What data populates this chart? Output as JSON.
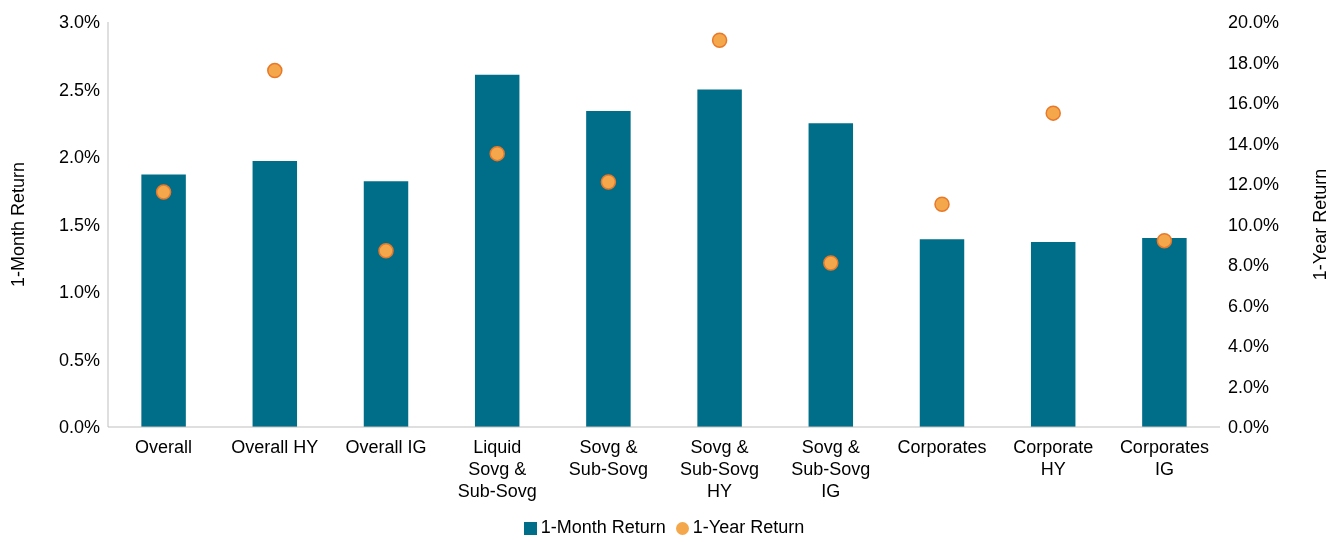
{
  "chart_data": {
    "type": "bar",
    "categories": [
      "Overall",
      "Overall HY",
      "Overall IG",
      "Liquid Sovg & Sub-Sovg",
      "Sovg & Sub-Sovg",
      "Sovg & Sub-Sovg HY",
      "Sovg & Sub-Sovg IG",
      "Corporates",
      "Corporate HY",
      "Corporates IG"
    ],
    "series": [
      {
        "name": "1-Month Return",
        "color": "#006e89",
        "values": [
          1.87,
          1.97,
          1.82,
          2.61,
          2.34,
          2.5,
          2.25,
          1.39,
          1.37,
          1.4
        ]
      },
      {
        "name": "1-Year Return",
        "type": "scatter",
        "axis": "y2",
        "color": "#f4a74b",
        "values": [
          11.6,
          17.6,
          8.7,
          13.5,
          12.1,
          19.1,
          8.1,
          11.0,
          15.5,
          9.2
        ]
      }
    ],
    "ylabel": "1-Month Return",
    "y2label": "1-Year Return",
    "ylim": [
      0,
      3
    ],
    "yticks": [
      {
        "value": 0,
        "label": "0.0%"
      },
      {
        "value": 0.5,
        "label": "0.5%"
      },
      {
        "value": 1,
        "label": "1.0%"
      },
      {
        "value": 1.5,
        "label": "1.5%"
      },
      {
        "value": 2,
        "label": "2.0%"
      },
      {
        "value": 2.5,
        "label": "2.5%"
      },
      {
        "value": 3,
        "label": "3.0%"
      }
    ],
    "y2lim": [
      0,
      20
    ],
    "y2ticks": [
      {
        "value": 0,
        "label": "0.0%"
      },
      {
        "value": 2,
        "label": "2.0%"
      },
      {
        "value": 4,
        "label": "4.0%"
      },
      {
        "value": 6,
        "label": "6.0%"
      },
      {
        "value": 8,
        "label": "8.0%"
      },
      {
        "value": 10,
        "label": "10.0%"
      },
      {
        "value": 12,
        "label": "12.0%"
      },
      {
        "value": 14,
        "label": "14.0%"
      },
      {
        "value": 16,
        "label": "16.0%"
      },
      {
        "value": 18,
        "label": "18.0%"
      },
      {
        "value": 20,
        "label": "20.0%"
      }
    ],
    "grid": false,
    "legend": "bottom",
    "marker": "circle"
  }
}
